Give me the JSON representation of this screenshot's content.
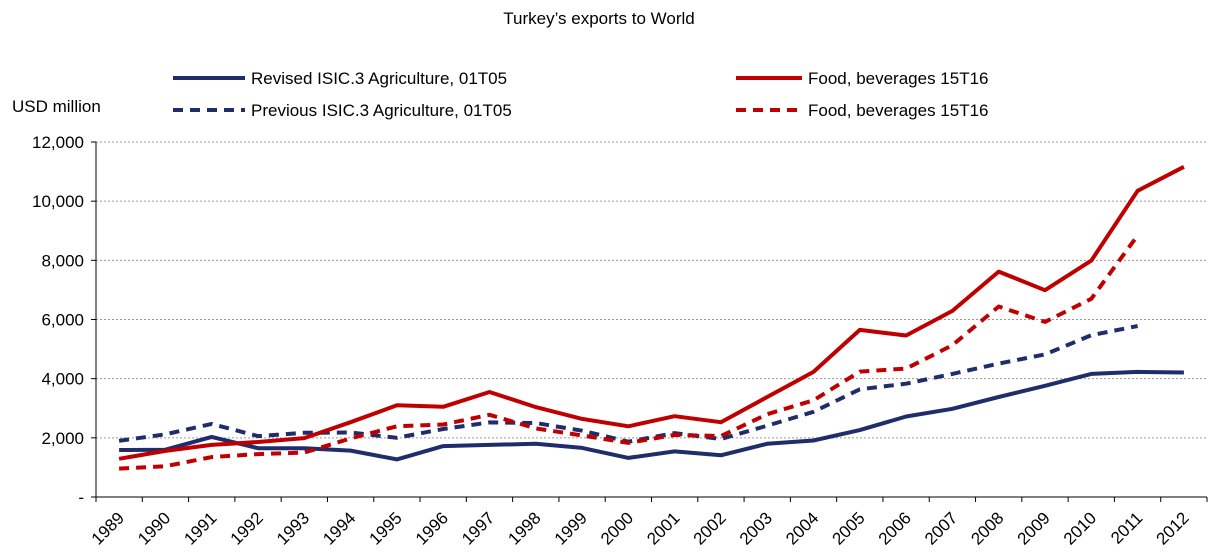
{
  "chart_data": {
    "type": "line",
    "title": "Turkey’s exports to World",
    "ylabel": "USD million",
    "xlabel": "",
    "ylim": [
      0,
      12000
    ],
    "y_ticks": [
      0,
      2000,
      4000,
      6000,
      8000,
      10000,
      12000
    ],
    "y_tick_labels": [
      "-",
      "2,000",
      "4,000",
      "6,000",
      "8,000",
      "10,000",
      "12,000"
    ],
    "categories": [
      "1989",
      "1990",
      "1991",
      "1992",
      "1993",
      "1994",
      "1995",
      "1996",
      "1997",
      "1998",
      "1999",
      "2000",
      "2001",
      "2002",
      "2003",
      "2004",
      "2005",
      "2006",
      "2007",
      "2008",
      "2009",
      "2010",
      "2011",
      "2012"
    ],
    "grid": true,
    "legend_position": "top",
    "series": [
      {
        "name": "Revised ISIC.3 Agriculture, 01T05",
        "color": "#1f2d6b",
        "dash": "solid",
        "values": [
          1590,
          1600,
          2030,
          1650,
          1650,
          1570,
          1270,
          1720,
          1760,
          1800,
          1660,
          1320,
          1540,
          1410,
          1800,
          1910,
          2260,
          2720,
          2980,
          3380,
          3760,
          4160,
          4230,
          4210
        ]
      },
      {
        "name": "Previous ISIC.3 Agriculture, 01T05",
        "color": "#1f2d6b",
        "dash": "dashed",
        "values": [
          1900,
          2120,
          2470,
          2060,
          2170,
          2180,
          2000,
          2300,
          2520,
          2500,
          2240,
          1870,
          2160,
          1960,
          2410,
          2880,
          3640,
          3830,
          4160,
          4510,
          4820,
          5470,
          5780,
          null
        ]
      },
      {
        "name": "Food, beverages 15T16",
        "color": "#c00000",
        "dash": "solid",
        "values": [
          1290,
          1560,
          1760,
          1860,
          1990,
          2530,
          3100,
          3050,
          3550,
          3040,
          2640,
          2390,
          2730,
          2530,
          3380,
          4230,
          5650,
          5460,
          6290,
          7620,
          6990,
          7990,
          10350,
          11160
        ]
      },
      {
        "name": "Food, beverages 15T16",
        "color": "#c00000",
        "dash": "dashed",
        "values": [
          960,
          1040,
          1350,
          1450,
          1500,
          1980,
          2390,
          2450,
          2780,
          2320,
          2080,
          1830,
          2100,
          2060,
          2800,
          3270,
          4240,
          4340,
          5130,
          6440,
          5920,
          6700,
          8840,
          null
        ]
      }
    ]
  }
}
